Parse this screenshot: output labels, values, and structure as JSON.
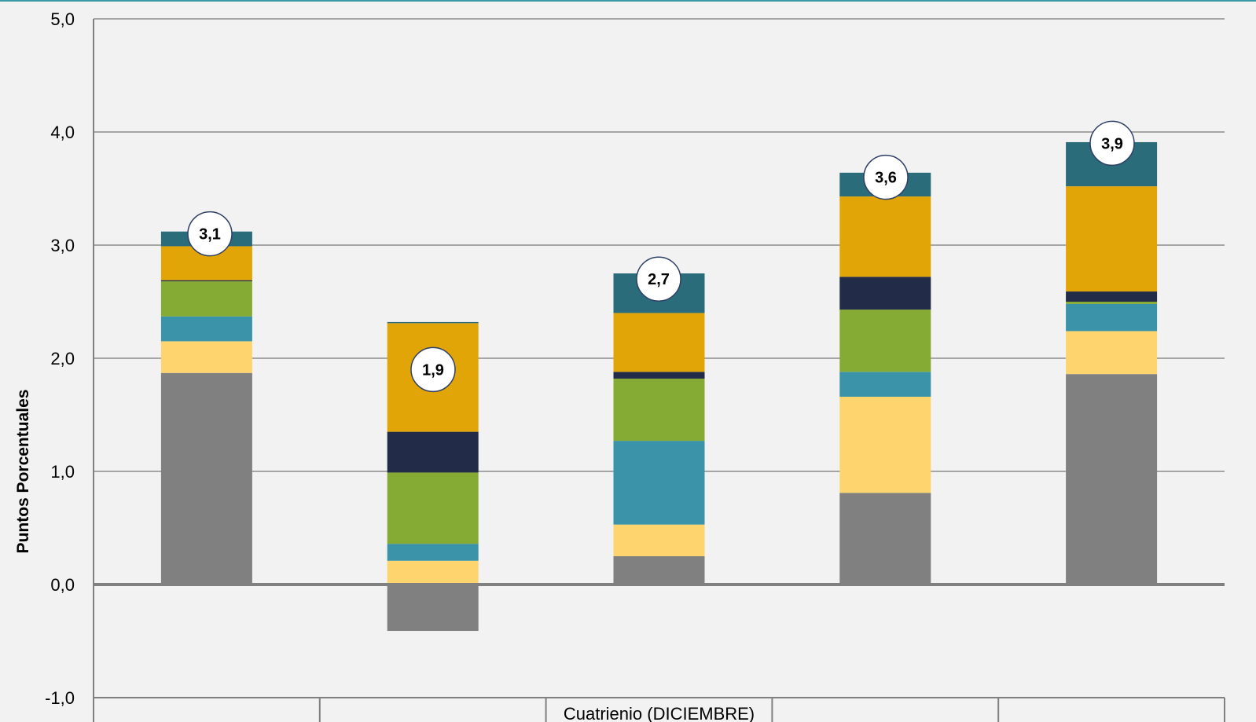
{
  "chart_data": {
    "type": "bar",
    "stacked": true,
    "ylabel": "Puntos Porcentuales",
    "ylim": [
      -1.0,
      5.0
    ],
    "yticks": [
      "-1,0",
      "0,0",
      "1,0",
      "2,0",
      "3,0",
      "4,0",
      "5,0"
    ],
    "grid": true,
    "categories": [
      "",
      "",
      "Cuatrienio (DICIEMBRE)",
      "",
      ""
    ],
    "totals": [
      "3,1",
      "1,9",
      "2,7",
      "3,6",
      "3,9"
    ],
    "total_values": [
      3.1,
      1.9,
      2.7,
      3.6,
      3.9
    ],
    "series": [
      {
        "color": "#808080",
        "values": [
          1.87,
          -0.41,
          0.25,
          0.81,
          1.86
        ]
      },
      {
        "color": "#fed46e",
        "values": [
          0.28,
          0.21,
          0.28,
          0.85,
          0.38
        ]
      },
      {
        "color": "#3a93a8",
        "values": [
          0.22,
          0.15,
          0.74,
          0.22,
          0.24
        ]
      },
      {
        "color": "#86ab34",
        "values": [
          0.31,
          0.63,
          0.55,
          0.55,
          0.02
        ]
      },
      {
        "color": "#222b47",
        "values": [
          0.01,
          0.36,
          0.06,
          0.29,
          0.09
        ]
      },
      {
        "color": "#e2a508",
        "values": [
          0.3,
          0.96,
          0.52,
          0.71,
          0.93
        ]
      },
      {
        "color": "#2b6c7b",
        "values": [
          0.13,
          0.01,
          0.35,
          0.21,
          0.39
        ]
      }
    ]
  },
  "colors": {
    "background": "#f2f2f2",
    "gridline": "#a6a6a6",
    "axis": "#808080",
    "top_rule": "#3a9aa6",
    "bubble_fill": "#ffffff",
    "bubble_stroke": "#2f3f66"
  }
}
